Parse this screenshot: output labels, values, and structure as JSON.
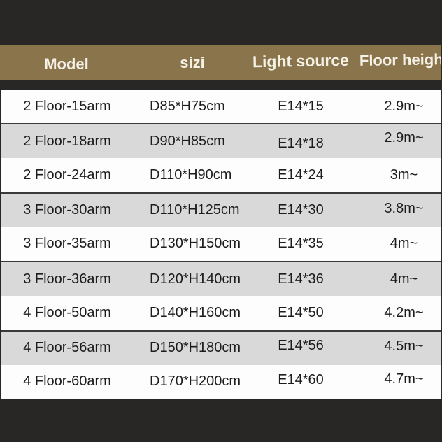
{
  "colors": {
    "background_dark": "#282725",
    "header_brown": "#8a744c",
    "header_text": "#f5f1e6",
    "row_white": "#fdfdfd",
    "row_gray": "#d9d9d9",
    "row_text": "#1c1c1c",
    "separator_dark": "#3a3a3a"
  },
  "header": {
    "columns": [
      {
        "label": "Model"
      },
      {
        "label": "sizi"
      },
      {
        "label": "Light source"
      },
      {
        "label": "Floor height"
      }
    ]
  },
  "rows": [
    {
      "model": "2 Floor-15arm",
      "size": "D85*H75cm",
      "light_source": "E14*15",
      "floor_height": "2.9m~"
    },
    {
      "model": "2 Floor-18arm",
      "size": "D90*H85cm",
      "light_source": "E14*18",
      "floor_height": "2.9m~"
    },
    {
      "model": "2 Floor-24arm",
      "size": "D110*H90cm",
      "light_source": "E14*24",
      "floor_height": "3m~"
    },
    {
      "model": "3 Floor-30arm",
      "size": "D110*H125cm",
      "light_source": "E14*30",
      "floor_height": "3.8m~"
    },
    {
      "model": "3 Floor-35arm",
      "size": "D130*H150cm",
      "light_source": "E14*35",
      "floor_height": "4m~"
    },
    {
      "model": "3 Floor-36arm",
      "size": "D120*H140cm",
      "light_source": "E14*36",
      "floor_height": "4m~"
    },
    {
      "model": "4 Floor-50arm",
      "size": "D140*H160cm",
      "light_source": "E14*50",
      "floor_height": "4.2m~"
    },
    {
      "model": "4 Floor-56arm",
      "size": "D150*H180cm",
      "light_source": "E14*56",
      "floor_height": "4.5m~"
    },
    {
      "model": "4 Floor-60arm",
      "size": "D170*H200cm",
      "light_source": "E14*60",
      "floor_height": "4.7m~"
    }
  ],
  "chart_data": {
    "type": "table",
    "title": "",
    "columns": [
      "Model",
      "sizi",
      "Light source",
      "Floor height"
    ],
    "rows": [
      [
        "2 Floor-15arm",
        "D85*H75cm",
        "E14*15",
        "2.9m~"
      ],
      [
        "2 Floor-18arm",
        "D90*H85cm",
        "E14*18",
        "2.9m~"
      ],
      [
        "2 Floor-24arm",
        "D110*H90cm",
        "E14*24",
        "3m~"
      ],
      [
        "3 Floor-30arm",
        "D110*H125cm",
        "E14*30",
        "3.8m~"
      ],
      [
        "3 Floor-35arm",
        "D130*H150cm",
        "E14*35",
        "4m~"
      ],
      [
        "3 Floor-36arm",
        "D120*H140cm",
        "E14*36",
        "4m~"
      ],
      [
        "4 Floor-50arm",
        "D140*H160cm",
        "E14*50",
        "4.2m~"
      ],
      [
        "4 Floor-56arm",
        "D150*H180cm",
        "E14*56",
        "4.5m~"
      ],
      [
        "4 Floor-60arm",
        "D170*H200cm",
        "E14*60",
        "4.7m~"
      ]
    ]
  }
}
